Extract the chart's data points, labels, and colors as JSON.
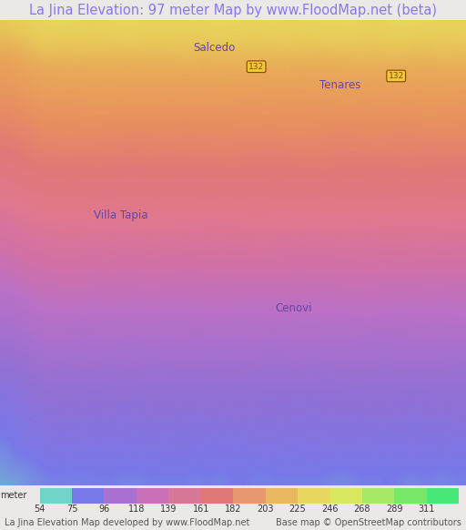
{
  "title": "La Jina Elevation: 97 meter Map by www.FloodMap.net (beta)",
  "title_color": "#8877ee",
  "title_bg": "#ede8e8",
  "title_fontsize": 10.5,
  "colorbar_labels": [
    "54",
    "75",
    "96",
    "118",
    "139",
    "161",
    "182",
    "203",
    "225",
    "246",
    "268",
    "289",
    "311"
  ],
  "colorbar_colors": [
    "#70d5c8",
    "#7878e8",
    "#a870d0",
    "#c870b8",
    "#d87898",
    "#e07878",
    "#e89870",
    "#e8b860",
    "#e8d860",
    "#d8e860",
    "#a8e868",
    "#78e868",
    "#48e878"
  ],
  "footer_left": "La Jina Elevation Map developed by www.FloodMap.net",
  "footer_right": "Base map © OpenStreetMap contributors",
  "footer_color": "#555555",
  "footer_fontsize": 7,
  "meter_label": "meter",
  "colorbar_label_fontsize": 7,
  "colorbar_label_color": "#333333",
  "fig_bg": "#ede8e8",
  "elevation_colors_low_to_high": [
    "#70d5c8",
    "#7878e8",
    "#9878d8",
    "#b070c8",
    "#c870b0",
    "#d87898",
    "#e07878",
    "#e89870",
    "#e8b860",
    "#e8d860"
  ],
  "map_top_color": "#e8a060",
  "map_upper_color": "#e08090",
  "map_mid_color": "#c080c0",
  "map_lower_color": "#8878d0",
  "map_bottom_color": "#7070c8",
  "map_corner_color": "#70d5c8"
}
